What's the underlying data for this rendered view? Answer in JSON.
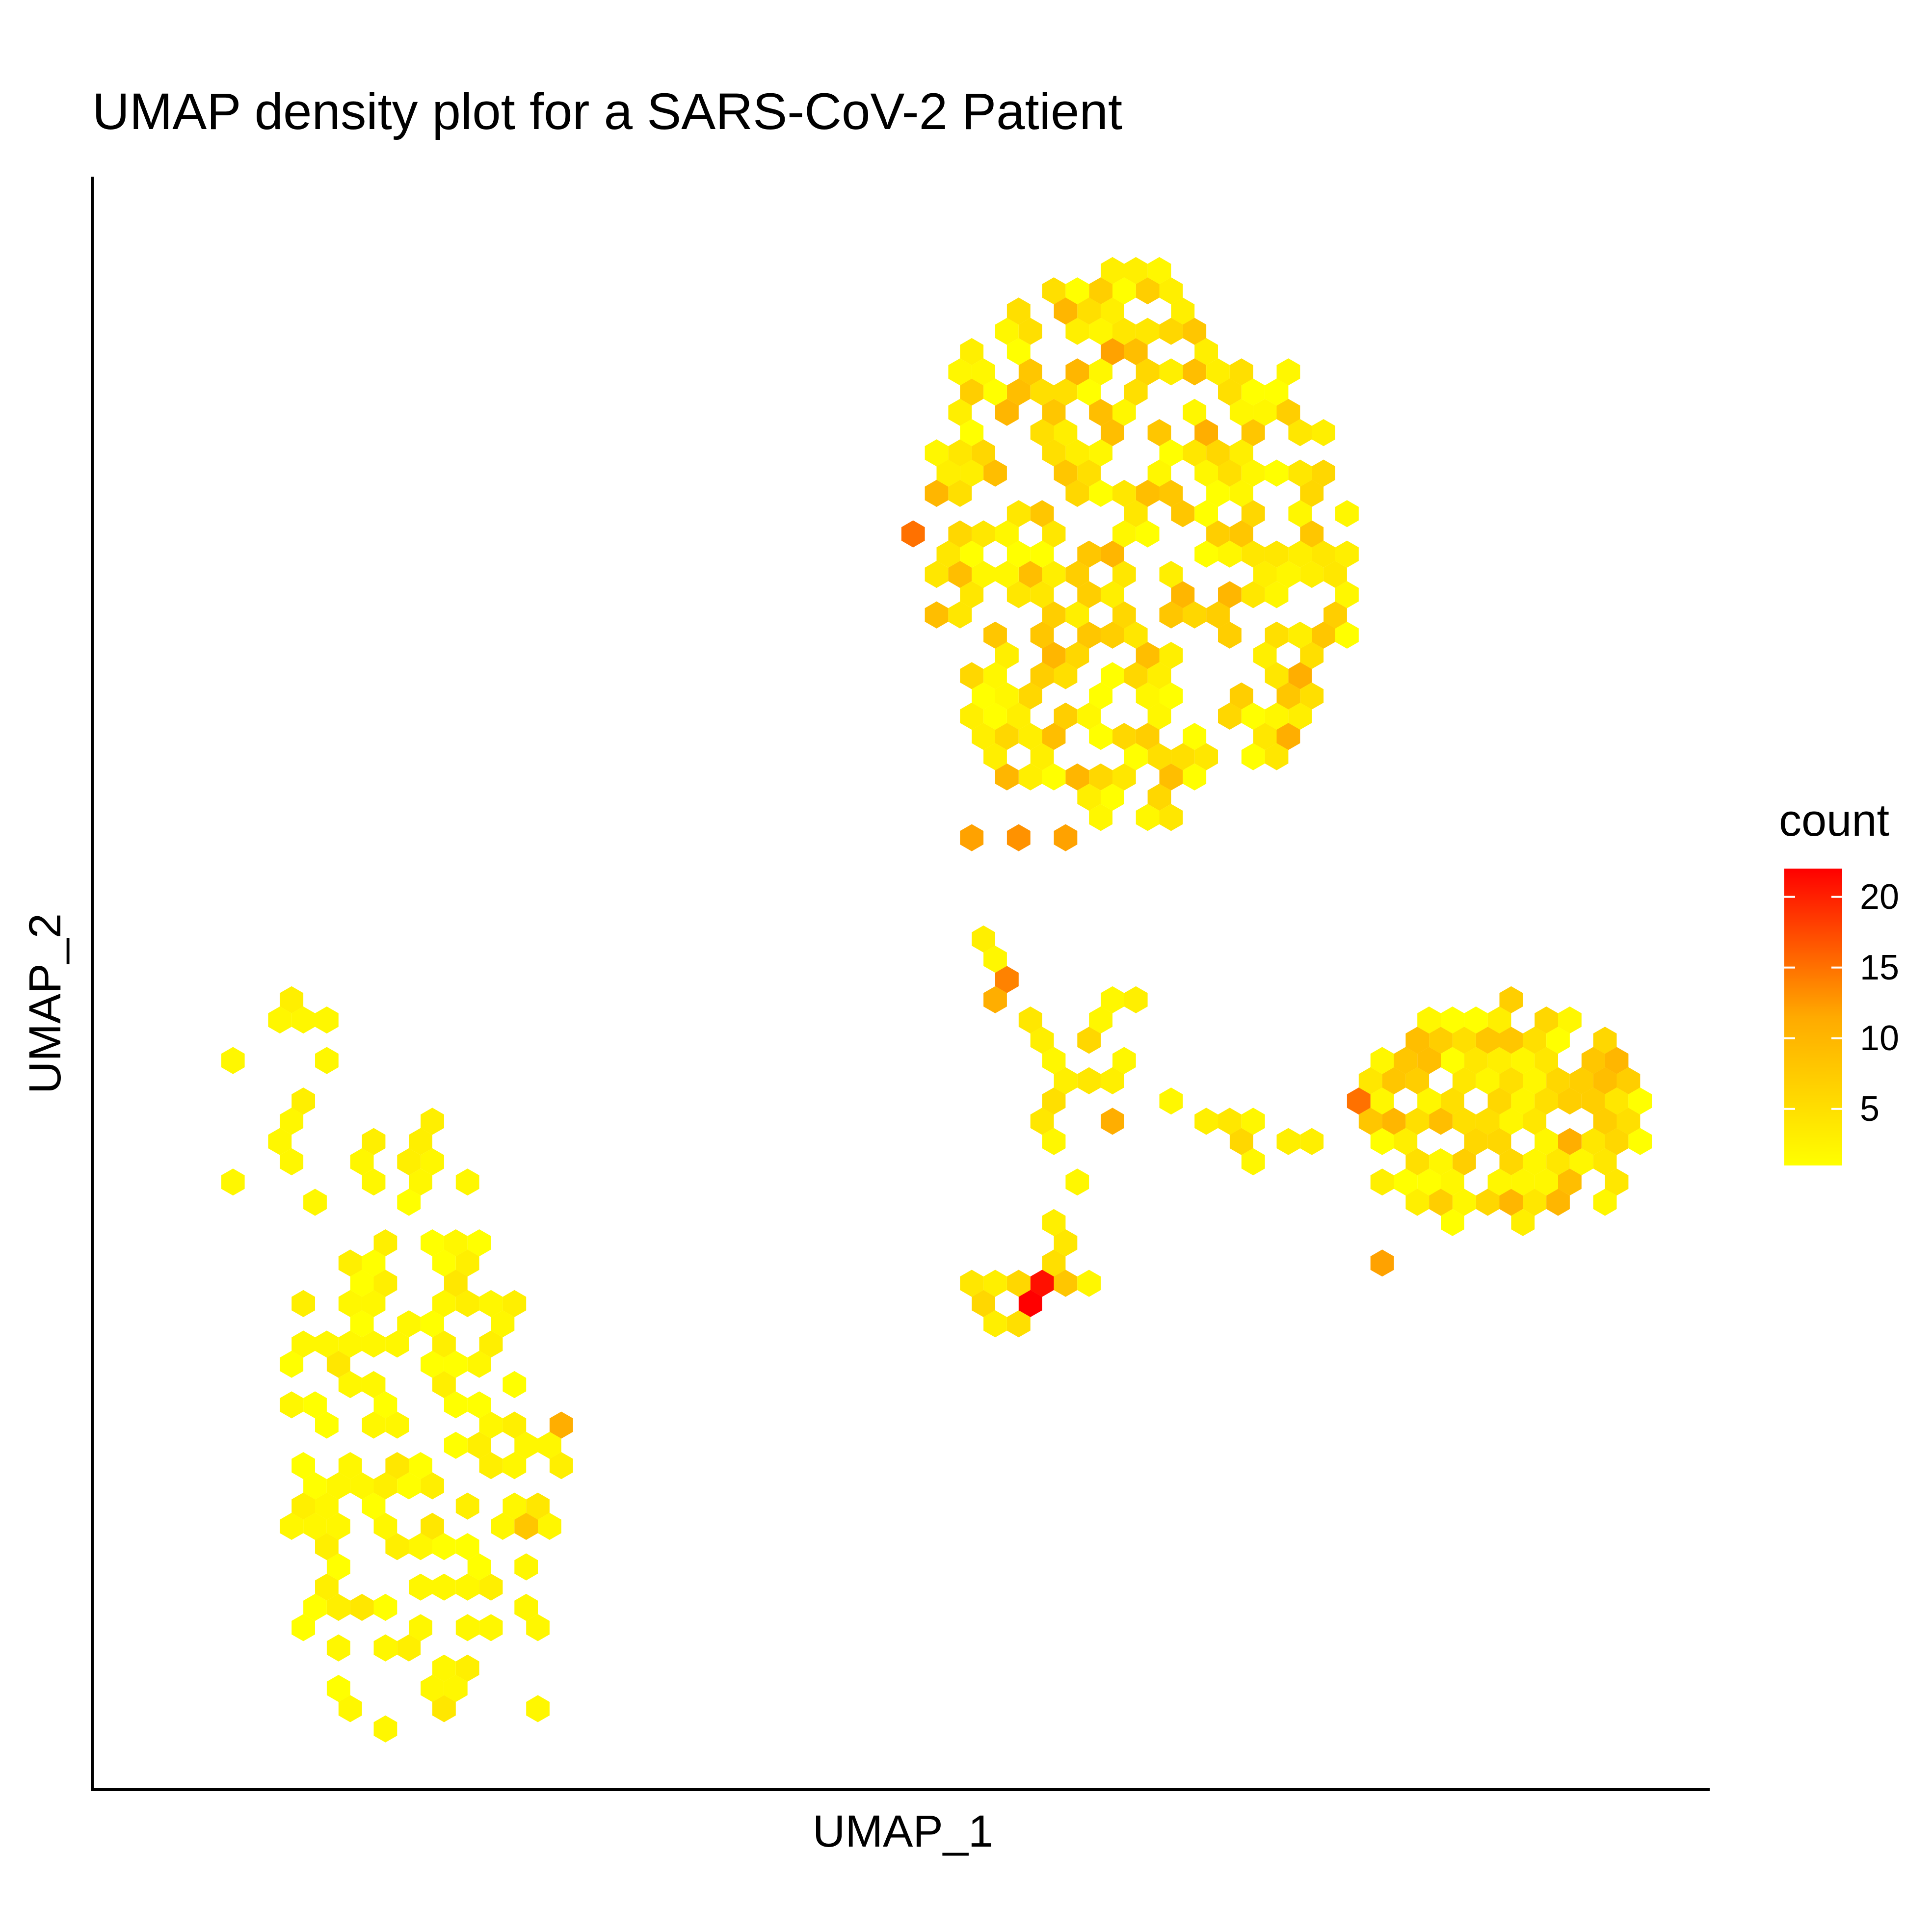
{
  "chart_data": {
    "type": "heatmap",
    "subtype": "hexbin",
    "title": "UMAP density plot for a SARS-CoV-2 Patient",
    "xlabel": "UMAP_1",
    "ylabel": "UMAP_2",
    "legend": {
      "title": "count",
      "placement": "right",
      "ticks": [
        5,
        10,
        15,
        20
      ],
      "range": [
        1,
        22
      ],
      "colors": {
        "low": "#FFFF00",
        "mid": "#FFAA00",
        "high": "#FF0000"
      }
    },
    "xlim": [
      0,
      100
    ],
    "ylim": [
      0,
      100
    ],
    "grid": false,
    "axis_ticks": false,
    "cell_size": 1.45,
    "clusters": [
      {
        "name": "",
        "center": [
          64.5,
          77
        ],
        "radii": [
          13.5,
          17.5
        ],
        "n_points": 420,
        "mean_count": 6,
        "max_count": 16
      },
      {
        "name": "",
        "center": [
          87.5,
          42
        ],
        "radii": [
          8.5,
          7
        ],
        "n_points": 210,
        "mean_count": 6,
        "max_count": 14
      },
      {
        "name": "",
        "center": [
          19,
          22
        ],
        "radii": [
          7.5,
          19
        ],
        "n_points": 150,
        "mean_count": 2,
        "max_count": 10
      }
    ],
    "cells": [
      [
        54.5,
        52.5,
        3
      ],
      [
        55.2,
        51.3,
        2
      ],
      [
        56.0,
        50.0,
        14
      ],
      [
        56.5,
        48.8,
        11
      ],
      [
        57.5,
        47.5,
        4
      ],
      [
        58.0,
        46.0,
        3
      ],
      [
        59.5,
        45.2,
        2
      ],
      [
        60.5,
        44.2,
        3
      ],
      [
        61.0,
        43.4,
        4
      ],
      [
        60.0,
        42.8,
        5
      ],
      [
        59.3,
        41.2,
        4
      ],
      [
        60.0,
        40.5,
        2
      ],
      [
        62.3,
        46.0,
        6
      ],
      [
        63.8,
        45.0,
        2
      ],
      [
        63.0,
        43.5,
        3
      ],
      [
        62.6,
        41.7,
        11
      ],
      [
        59.5,
        35.0,
        3
      ],
      [
        59.2,
        32.8,
        5
      ],
      [
        58.4,
        31.8,
        4
      ],
      [
        57.0,
        31.8,
        6
      ],
      [
        56.0,
        31.8,
        3
      ],
      [
        57.8,
        30.5,
        22
      ],
      [
        58.5,
        31.2,
        21
      ],
      [
        59.6,
        30.8,
        8
      ],
      [
        55.4,
        30.5,
        6
      ],
      [
        54.3,
        31.5,
        4
      ],
      [
        56.8,
        29.5,
        5
      ],
      [
        55.6,
        29.2,
        3
      ],
      [
        61.8,
        31.4,
        2
      ],
      [
        60.3,
        37.5,
        2
      ],
      [
        60.6,
        33.5,
        4
      ],
      [
        62.6,
        48.8,
        2
      ],
      [
        63.8,
        48.8,
        3
      ],
      [
        62.0,
        48.0,
        2
      ],
      [
        66.8,
        42.8,
        2
      ],
      [
        68.3,
        41.5,
        3
      ],
      [
        69.8,
        41.0,
        4
      ],
      [
        70.8,
        40.4,
        6
      ],
      [
        71.4,
        42.0,
        2
      ],
      [
        71.4,
        39.5,
        2
      ],
      [
        73.6,
        40.8,
        3
      ],
      [
        74.4,
        40.0,
        2
      ],
      [
        75.3,
        40.8,
        3
      ],
      [
        79.0,
        43.0,
        15
      ],
      [
        79.6,
        41.8,
        8
      ],
      [
        50.6,
        77.5,
        15
      ],
      [
        60.8,
        59.0,
        12
      ],
      [
        56.9,
        58.5,
        13
      ],
      [
        54.3,
        59.0,
        12
      ],
      [
        74.5,
        65.5,
        11
      ],
      [
        73.8,
        67.2,
        8
      ],
      [
        80.2,
        32.5,
        12
      ],
      [
        12.5,
        48.0,
        2
      ],
      [
        12.5,
        49.2,
        3
      ],
      [
        13.8,
        48.0,
        2
      ],
      [
        11.6,
        48.0,
        2
      ],
      [
        9.0,
        45.5,
        2
      ],
      [
        14.2,
        45.5,
        2
      ],
      [
        12.5,
        42.8,
        3
      ],
      [
        12.6,
        41.6,
        2
      ],
      [
        12.0,
        40.6,
        2
      ],
      [
        11.6,
        39.5,
        2
      ],
      [
        8.2,
        37.2,
        2
      ],
      [
        14.2,
        36.6,
        2
      ],
      [
        20.6,
        41.5,
        3
      ],
      [
        21.6,
        41.5,
        2
      ],
      [
        20.8,
        40.2,
        3
      ],
      [
        21.1,
        38.6,
        2
      ],
      [
        20.8,
        37.4,
        2
      ],
      [
        22.2,
        34.0,
        2
      ],
      [
        22.5,
        32.8,
        3
      ],
      [
        23.0,
        31.8,
        4
      ],
      [
        22.0,
        31.8,
        3
      ],
      [
        23.5,
        30.5,
        3
      ],
      [
        24.5,
        30.0,
        2
      ],
      [
        12.8,
        28.0,
        2
      ],
      [
        16.5,
        28.0,
        2
      ],
      [
        18.2,
        27.0,
        2
      ],
      [
        25.0,
        28.0,
        2
      ],
      [
        24.2,
        26.5,
        2
      ],
      [
        23.5,
        25.8,
        2
      ],
      [
        29.6,
        22.7,
        11
      ],
      [
        28.8,
        21.5,
        2
      ],
      [
        26.5,
        21.8,
        2
      ],
      [
        26.5,
        20.0,
        2
      ],
      [
        28.3,
        19.5,
        3
      ],
      [
        27.5,
        17.0,
        4
      ],
      [
        26.5,
        15.8,
        2
      ],
      [
        27.0,
        16.6,
        8
      ],
      [
        28.0,
        16.0,
        2
      ],
      [
        23.5,
        12.5,
        2
      ],
      [
        27.3,
        13.5,
        2
      ],
      [
        21.0,
        12.5,
        2
      ],
      [
        21.0,
        10.5,
        2
      ],
      [
        24.5,
        10.0,
        2
      ],
      [
        27.0,
        9.5,
        2
      ],
      [
        27.5,
        10.8,
        2
      ],
      [
        27.5,
        4.5,
        2
      ],
      [
        12.5,
        23.5,
        2
      ],
      [
        15.5,
        25.5,
        2
      ],
      [
        16.8,
        24.7,
        2
      ]
    ]
  }
}
